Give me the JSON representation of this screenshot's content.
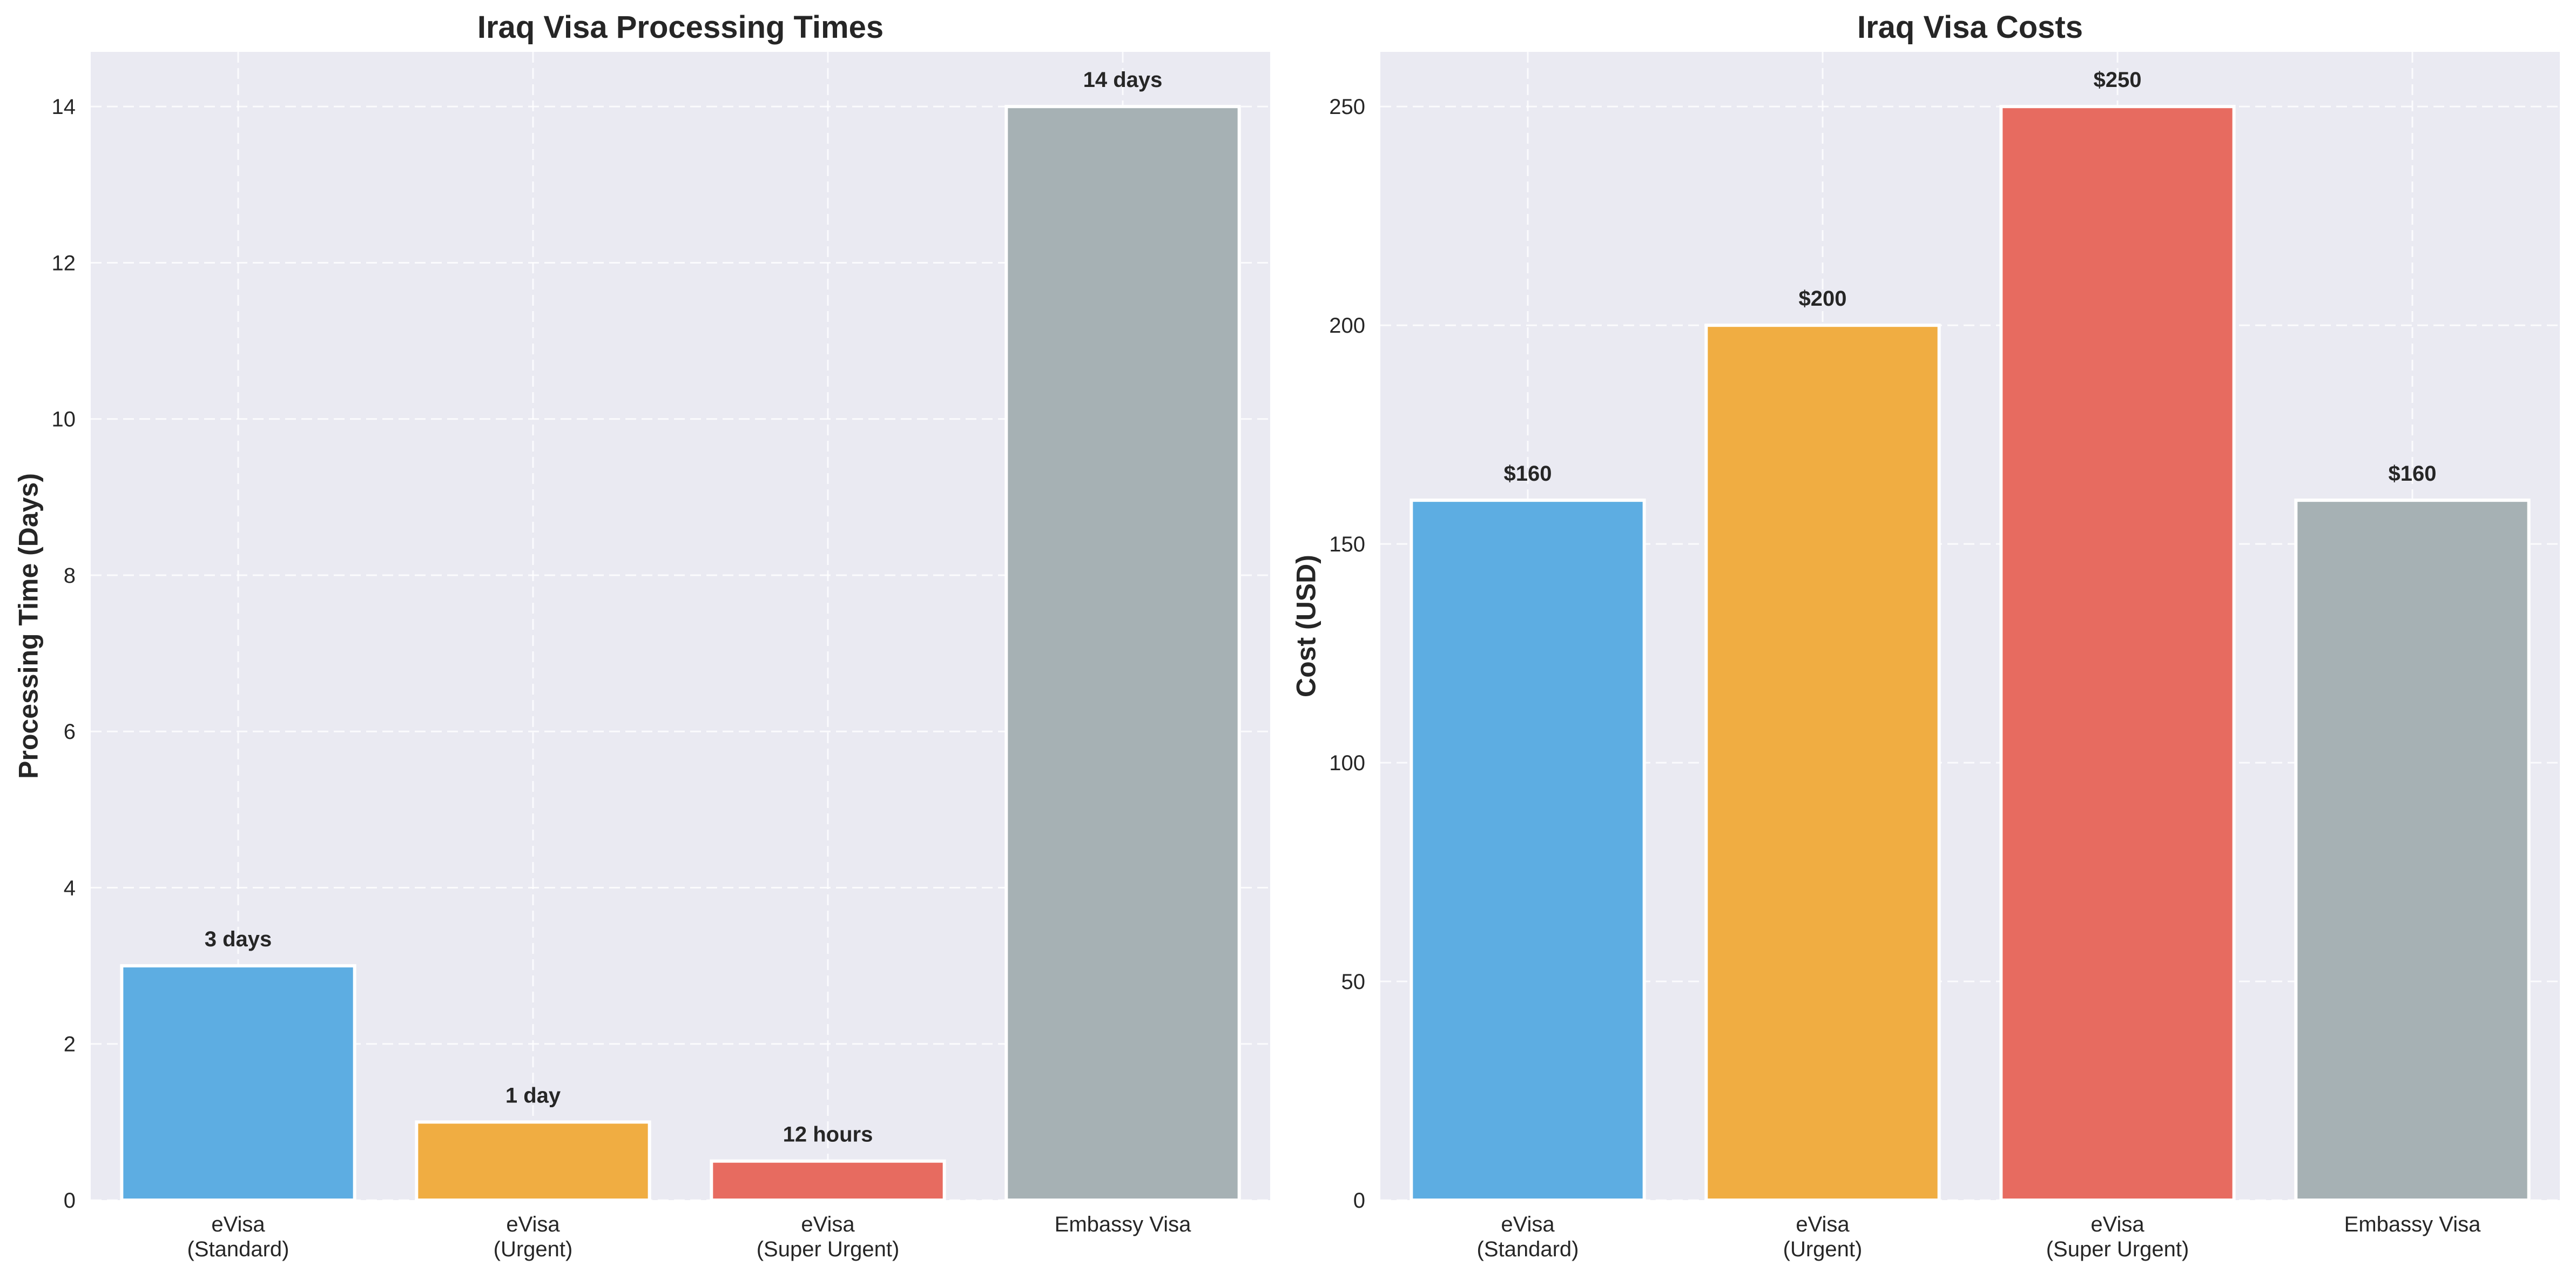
{
  "colors": {
    "plot_background": "#eaeaf2",
    "grid": "#ffffff",
    "text": "#262626",
    "bar_edge": "#ffffff"
  },
  "chart_data": [
    {
      "type": "bar",
      "title": "Iraq Visa Processing Times",
      "xlabel": "",
      "ylabel": "Processing Time (Days)",
      "categories": [
        "eVisa\n(Standard)",
        "eVisa\n(Urgent)",
        "eVisa\n(Super Urgent)",
        "Embassy Visa"
      ],
      "values": [
        3,
        1,
        0.5,
        14
      ],
      "data_labels": [
        "3 days",
        "1 day",
        "12 hours",
        "14 days"
      ],
      "colors": [
        "#5dade2",
        "#f0ad42",
        "#e76b60",
        "#a6b1b4"
      ],
      "ylim": [
        0,
        14.7
      ],
      "yticks": [
        0,
        2,
        4,
        6,
        8,
        10,
        12,
        14
      ],
      "grid": true
    },
    {
      "type": "bar",
      "title": "Iraq Visa Costs",
      "xlabel": "",
      "ylabel": "Cost (USD)",
      "categories": [
        "eVisa\n(Standard)",
        "eVisa\n(Urgent)",
        "eVisa\n(Super Urgent)",
        "Embassy Visa"
      ],
      "values": [
        160,
        200,
        250,
        160
      ],
      "data_labels": [
        "$160",
        "$200",
        "$250",
        "$160"
      ],
      "colors": [
        "#5dade2",
        "#f0ad42",
        "#e76b60",
        "#a6b1b4"
      ],
      "ylim": [
        0,
        262.5
      ],
      "yticks": [
        0,
        50,
        100,
        150,
        200,
        250
      ],
      "grid": true
    }
  ]
}
